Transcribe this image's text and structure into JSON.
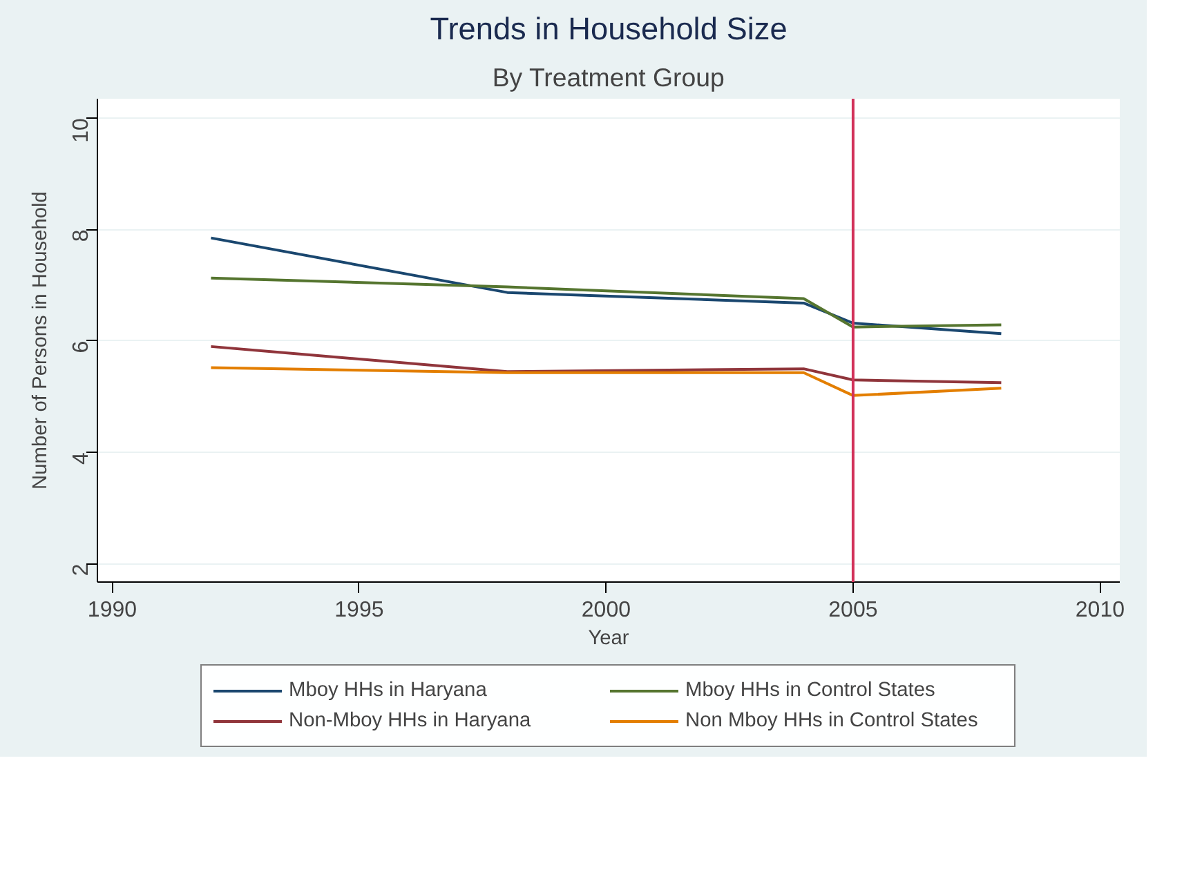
{
  "chart_data": {
    "type": "line",
    "title": "Trends in Household Size",
    "subtitle": "By Treatment Group",
    "xlabel": "Year",
    "ylabel": "Number of Persons in Household",
    "x": [
      1992,
      1998,
      2004,
      2005,
      2008
    ],
    "series": [
      {
        "name": "Mboy HHs in Haryana",
        "color": "#1a476f",
        "values": [
          7.85,
          6.87,
          6.68,
          6.32,
          6.13
        ]
      },
      {
        "name": "Non-Mboy HHs in Haryana",
        "color": "#90353b",
        "values": [
          5.9,
          5.45,
          5.5,
          5.3,
          5.25
        ]
      },
      {
        "name": "Mboy HHs in Control States",
        "color": "#55752f",
        "values": [
          7.13,
          6.97,
          6.76,
          6.25,
          6.29
        ]
      },
      {
        "name": "Non Mboy HHs in Control States",
        "color": "#e37e00",
        "values": [
          5.52,
          5.43,
          5.43,
          5.02,
          5.15
        ]
      }
    ],
    "xlim": [
      1989.7,
      2010.4
    ],
    "ylim": [
      1.67,
      10.35
    ],
    "xticks": [
      1990,
      1995,
      2000,
      2005,
      2010
    ],
    "yticks": [
      2,
      4,
      6,
      8,
      10
    ],
    "ref_lines": [
      {
        "axis": "x",
        "value": 2005,
        "color": "#d2325a"
      }
    ],
    "grid": "y",
    "legend": "bottom",
    "marker": "none",
    "line_style": "solid"
  }
}
